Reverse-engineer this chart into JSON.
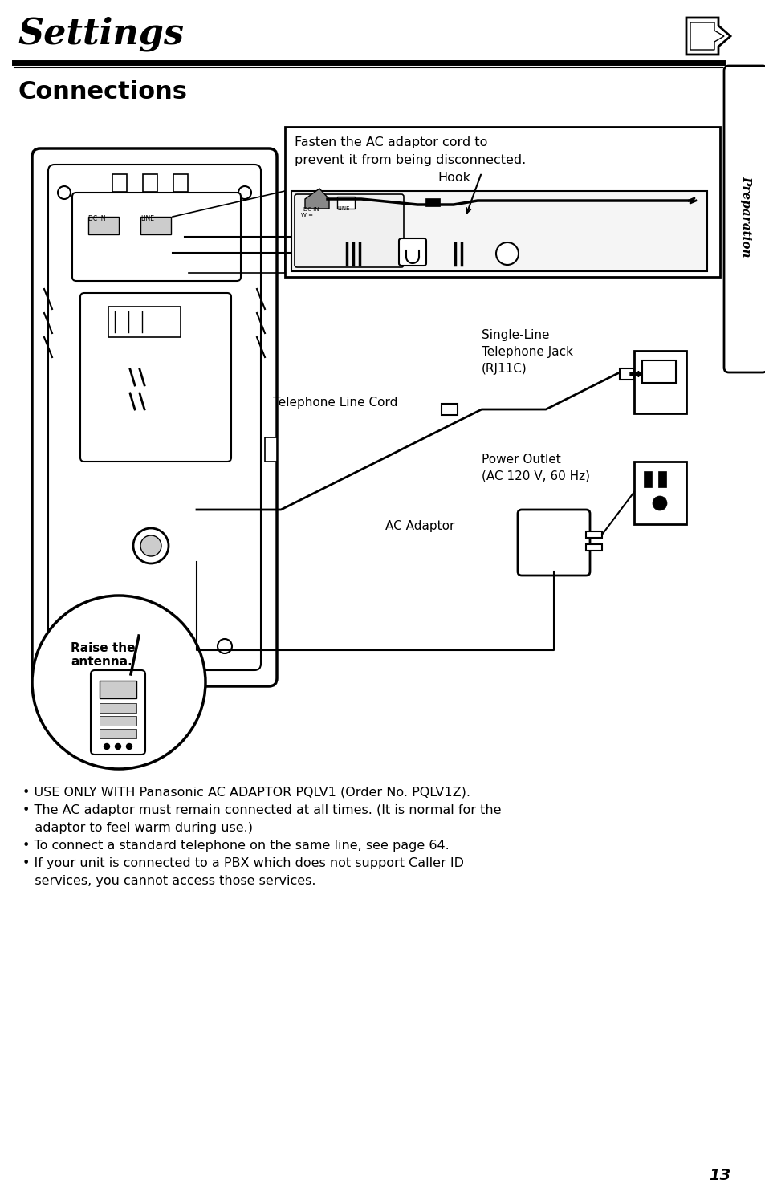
{
  "title": "Settings",
  "section": "Connections",
  "page_number": "13",
  "sidebar_text": "Preparation",
  "callout_lines": [
    "Fasten the AC adaptor cord to",
    "prevent it from being disconnected.",
    "Hook"
  ],
  "label_single_line": "Single-Line\nTelephone Jack\n(RJ11C)",
  "label_tel_cord": "Telephone Line Cord",
  "label_power_outlet": "Power Outlet\n(AC 120 V, 60 Hz)",
  "label_ac_adaptor": "AC Adaptor",
  "label_raise": "Raise the\nantenna.",
  "bullets": [
    "• USE ONLY WITH Panasonic AC ADAPTOR PQLV1 (Order No. PQLV1Z).",
    "• The AC adaptor must remain connected at all times. (It is normal for the",
    "   adaptor to feel warm during use.)",
    "• To connect a standard telephone on the same line, see page 64.",
    "• If your unit is connected to a PBX which does not support Caller ID",
    "   services, you cannot access those services."
  ],
  "bg": "#ffffff",
  "black": "#000000",
  "gray": "#888888",
  "lgray": "#cccccc"
}
